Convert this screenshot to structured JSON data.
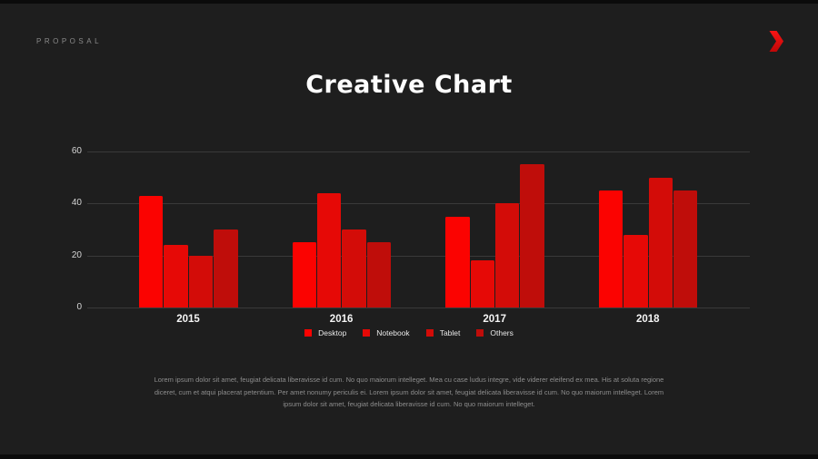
{
  "slide": {
    "eyebrow": "PROPOSAL",
    "title": "Creative Chart",
    "description": "Lorem ipsum dolor sit amet, feugiat delicata liberavisse id cum. No quo maiorum intelleget. Mea cu case ludus integre, vide viderer eleifend ex mea. His at soluta regione diceret, cum et atqui placerat petentium. Per amet nonumy periculis ei. Lorem ipsum dolor sit amet, feugiat delicata liberavisse id cum. No quo maiorum intelleget. Lorem ipsum dolor sit amet, feugiat delicata liberavisse id cum. No quo maiorum intelleget.",
    "colors": {
      "background": "#1e1e1e",
      "letterbox": "#0b0b0b",
      "gridline": "#3a3a3a",
      "accent_red": "#e8000d",
      "title_text": "#fdfdfd",
      "muted_text": "#8d8d8d"
    },
    "icons": {
      "nav_arrow": "chevron-right-icon"
    }
  },
  "chart_data": {
    "type": "bar",
    "title": "Creative Chart",
    "categories": [
      "2015",
      "2016",
      "2017",
      "2018"
    ],
    "series": [
      {
        "name": "Desktop",
        "color": "#fb0301",
        "values": [
          43,
          25,
          35,
          45
        ]
      },
      {
        "name": "Notebook",
        "color": "#e60906",
        "values": [
          24,
          44,
          18,
          28
        ]
      },
      {
        "name": "Tablet",
        "color": "#d30c08",
        "values": [
          20,
          30,
          40,
          50
        ]
      },
      {
        "name": "Others",
        "color": "#bf0d0a",
        "values": [
          30,
          25,
          55,
          45
        ]
      }
    ],
    "ylim": [
      0,
      60
    ],
    "yticks": [
      0,
      20,
      40,
      60
    ],
    "grid": true,
    "legend_position": "bottom"
  }
}
